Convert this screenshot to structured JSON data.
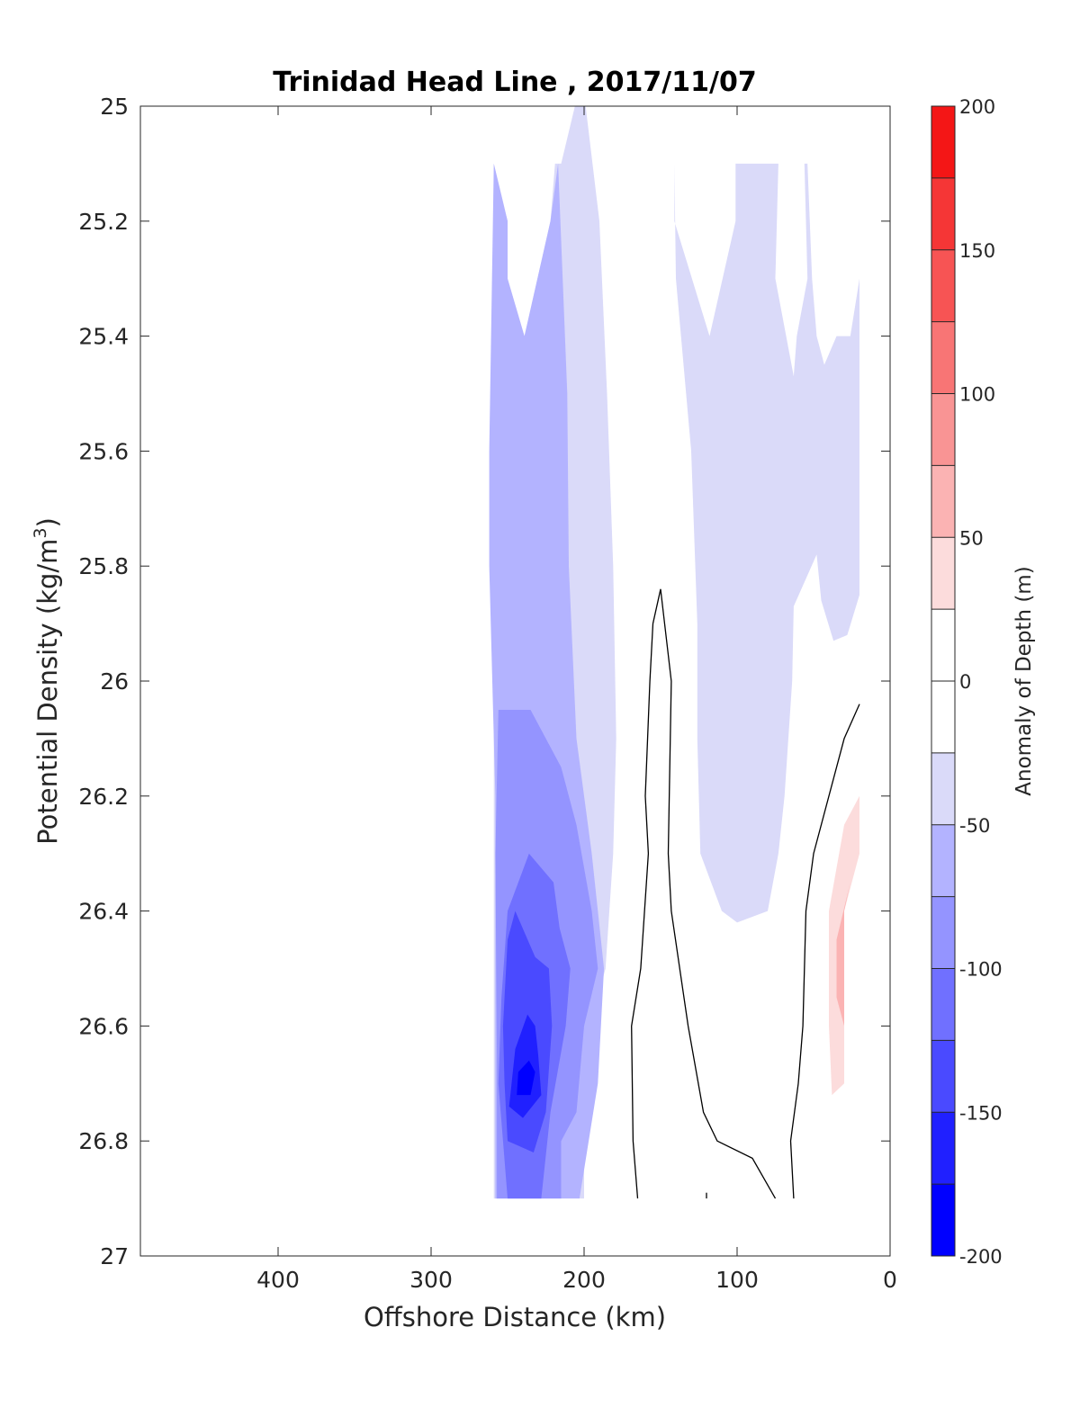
{
  "chart_data": {
    "type": "filled-contour",
    "title": "Trinidad Head Line , 2017/11/07",
    "xlabel": "Offshore Distance (km)",
    "ylabel": "Potential Density (kg/m3)",
    "ylabel_main": "Potential Density (kg/m",
    "ylabel_sup": "3",
    "ylabel_close": ")",
    "xlim": [
      490,
      0
    ],
    "x_reversed": true,
    "ylim": [
      25,
      27
    ],
    "y_reversed": true,
    "x_ticks": [
      400,
      300,
      200,
      100,
      0
    ],
    "y_ticks": [
      "25",
      "25.2",
      "25.4",
      "25.6",
      "25.8",
      "26",
      "26.2",
      "26.4",
      "26.6",
      "26.8",
      "27"
    ],
    "colorbar": {
      "label": "Anomaly of Depth (m)",
      "range": [
        -200,
        200
      ],
      "ticks": [
        "200",
        "150",
        "100",
        "50",
        "0",
        "-50",
        "-100",
        "-150",
        "-200"
      ],
      "levels": [
        -200,
        -175,
        -150,
        -125,
        -100,
        -75,
        -50,
        -25,
        0,
        25,
        50,
        75,
        100,
        125,
        150,
        175,
        200
      ],
      "colors": [
        "#0000ff",
        "#2020ff",
        "#4a4aff",
        "#7070ff",
        "#9494ff",
        "#b3b3ff",
        "#dadaf9",
        "#ffffff",
        "#ffffff",
        "#fcdcdc",
        "#fbb3b3",
        "#f99494",
        "#f87575",
        "#f75454",
        "#f53636",
        "#f41616"
      ]
    },
    "contour_regions": [
      {
        "level": "-50 to -25",
        "color": "#dadaf9",
        "points": [
          [
            259,
            25.1
          ],
          [
            250,
            25.2
          ],
          [
            250,
            25.3
          ],
          [
            239,
            25.4
          ],
          [
            222,
            25.2
          ],
          [
            219,
            25.1
          ],
          [
            215,
            25.1
          ],
          [
            206,
            25.0
          ],
          [
            199,
            25.0
          ],
          [
            190,
            25.2
          ],
          [
            185,
            25.5
          ],
          [
            181,
            25.8
          ],
          [
            179,
            26.1
          ],
          [
            181,
            26.3
          ],
          [
            186,
            26.5
          ],
          [
            196,
            26.6
          ],
          [
            200,
            26.8
          ],
          [
            200,
            26.9
          ],
          [
            259,
            26.9
          ]
        ]
      },
      {
        "level": "-50 to -25",
        "color": "#dadaf9",
        "points": [
          [
            141,
            25.1
          ],
          [
            141,
            25.2
          ],
          [
            118,
            25.4
          ],
          [
            101,
            25.2
          ],
          [
            101,
            25.1
          ],
          [
            73,
            25.1
          ],
          [
            75,
            25.3
          ],
          [
            63,
            25.47
          ],
          [
            61,
            25.4
          ],
          [
            54,
            25.3
          ],
          [
            56,
            25.1
          ],
          [
            54,
            25.1
          ],
          [
            51,
            25.3
          ],
          [
            48,
            25.4
          ],
          [
            43,
            25.45
          ],
          [
            35,
            25.4
          ],
          [
            26,
            25.4
          ],
          [
            20,
            25.3
          ],
          [
            20,
            25.85
          ],
          [
            28,
            25.92
          ],
          [
            37,
            25.93
          ],
          [
            45,
            25.86
          ],
          [
            48,
            25.78
          ],
          [
            63,
            25.87
          ],
          [
            64,
            26.0
          ],
          [
            69,
            26.2
          ],
          [
            73,
            26.3
          ],
          [
            80,
            26.4
          ],
          [
            100,
            26.42
          ],
          [
            110,
            26.4
          ],
          [
            124,
            26.3
          ],
          [
            126,
            26.1
          ],
          [
            126,
            25.9
          ],
          [
            130,
            25.6
          ],
          [
            140,
            25.3
          ],
          [
            141,
            25.1
          ]
        ]
      },
      {
        "level": "-75 to -50",
        "color": "#b3b3ff",
        "points": [
          [
            259,
            25.1
          ],
          [
            250,
            25.2
          ],
          [
            250,
            25.3
          ],
          [
            239,
            25.4
          ],
          [
            222,
            25.2
          ],
          [
            217,
            25.1
          ],
          [
            211,
            25.5
          ],
          [
            210,
            25.8
          ],
          [
            205,
            26.1
          ],
          [
            195,
            26.3
          ],
          [
            187,
            26.5
          ],
          [
            191,
            26.7
          ],
          [
            203,
            26.9
          ],
          [
            258,
            26.9
          ],
          [
            258,
            26.2
          ],
          [
            262,
            25.8
          ],
          [
            262,
            25.6
          ],
          [
            259,
            25.1
          ]
        ]
      },
      {
        "level": "-100 to -75",
        "color": "#9494ff",
        "points": [
          [
            257,
            26.65
          ],
          [
            257,
            26.9
          ],
          [
            215,
            26.9
          ],
          [
            215,
            26.8
          ],
          [
            205,
            26.75
          ],
          [
            200,
            26.6
          ],
          [
            191,
            26.5
          ],
          [
            195,
            26.4
          ],
          [
            205,
            26.25
          ],
          [
            215,
            26.15
          ],
          [
            235,
            26.05
          ],
          [
            256,
            26.05
          ],
          [
            258,
            26.3
          ],
          [
            257,
            26.65
          ]
        ]
      },
      {
        "level": "-125 to -100",
        "color": "#7070ff",
        "points": [
          [
            256,
            26.7
          ],
          [
            250,
            26.9
          ],
          [
            228,
            26.9
          ],
          [
            222,
            26.75
          ],
          [
            212,
            26.6
          ],
          [
            209,
            26.5
          ],
          [
            216,
            26.43
          ],
          [
            220,
            26.35
          ],
          [
            236,
            26.3
          ],
          [
            243,
            26.35
          ],
          [
            250,
            26.4
          ],
          [
            254,
            26.55
          ],
          [
            256,
            26.7
          ]
        ]
      },
      {
        "level": "-150 to -125",
        "color": "#4a4aff",
        "points": [
          [
            253,
            26.6
          ],
          [
            252,
            26.7
          ],
          [
            250,
            26.8
          ],
          [
            233,
            26.82
          ],
          [
            225,
            26.75
          ],
          [
            221,
            26.6
          ],
          [
            223,
            26.5
          ],
          [
            232,
            26.48
          ],
          [
            245,
            26.4
          ],
          [
            250,
            26.45
          ],
          [
            253,
            26.6
          ]
        ]
      },
      {
        "level": "-175 to -150",
        "color": "#2020ff",
        "points": [
          [
            245,
            26.64
          ],
          [
            249,
            26.74
          ],
          [
            240,
            26.76
          ],
          [
            228,
            26.72
          ],
          [
            230,
            26.65
          ],
          [
            232,
            26.6
          ],
          [
            237,
            26.58
          ],
          [
            245,
            26.64
          ]
        ]
      },
      {
        "level": "-200 to -175",
        "color": "#0000ff",
        "points": [
          [
            243,
            26.68
          ],
          [
            244,
            26.72
          ],
          [
            235,
            26.72
          ],
          [
            232,
            26.68
          ],
          [
            236,
            26.66
          ],
          [
            243,
            26.68
          ]
        ]
      },
      {
        "level": "25 to 50",
        "color": "#fcdcdc",
        "points": [
          [
            20,
            26.2
          ],
          [
            20,
            26.3
          ],
          [
            30,
            26.4
          ],
          [
            30,
            26.7
          ],
          [
            38,
            26.72
          ],
          [
            40,
            26.6
          ],
          [
            40,
            26.4
          ],
          [
            30,
            26.25
          ],
          [
            20,
            26.2
          ]
        ]
      },
      {
        "level": "50 to 75",
        "color": "#fbb3b3",
        "points": [
          [
            26,
            26.35
          ],
          [
            35,
            26.45
          ],
          [
            35,
            26.55
          ],
          [
            30,
            26.6
          ],
          [
            30,
            26.4
          ],
          [
            26,
            26.35
          ]
        ]
      }
    ],
    "contour_lines": [
      {
        "level": 0,
        "points": [
          [
            165,
            26.9
          ],
          [
            168,
            26.8
          ],
          [
            169,
            26.6
          ],
          [
            163,
            26.5
          ],
          [
            158,
            26.3
          ],
          [
            160,
            26.2
          ],
          [
            157,
            26.0
          ],
          [
            155,
            25.9
          ],
          [
            150,
            25.84
          ],
          [
            143,
            26.0
          ],
          [
            145,
            26.3
          ],
          [
            143,
            26.4
          ],
          [
            132,
            26.6
          ],
          [
            122,
            26.75
          ],
          [
            113,
            26.8
          ],
          [
            90,
            26.83
          ],
          [
            75,
            26.9
          ]
        ]
      },
      {
        "level": 0,
        "points": [
          [
            63,
            26.9
          ],
          [
            65,
            26.8
          ],
          [
            60,
            26.7
          ],
          [
            57,
            26.6
          ],
          [
            55,
            26.4
          ],
          [
            50,
            26.3
          ],
          [
            30,
            26.1
          ],
          [
            20,
            26.04
          ]
        ]
      },
      {
        "level": 0,
        "points": [
          [
            120,
            26.9
          ],
          [
            120,
            26.89
          ]
        ]
      }
    ]
  }
}
